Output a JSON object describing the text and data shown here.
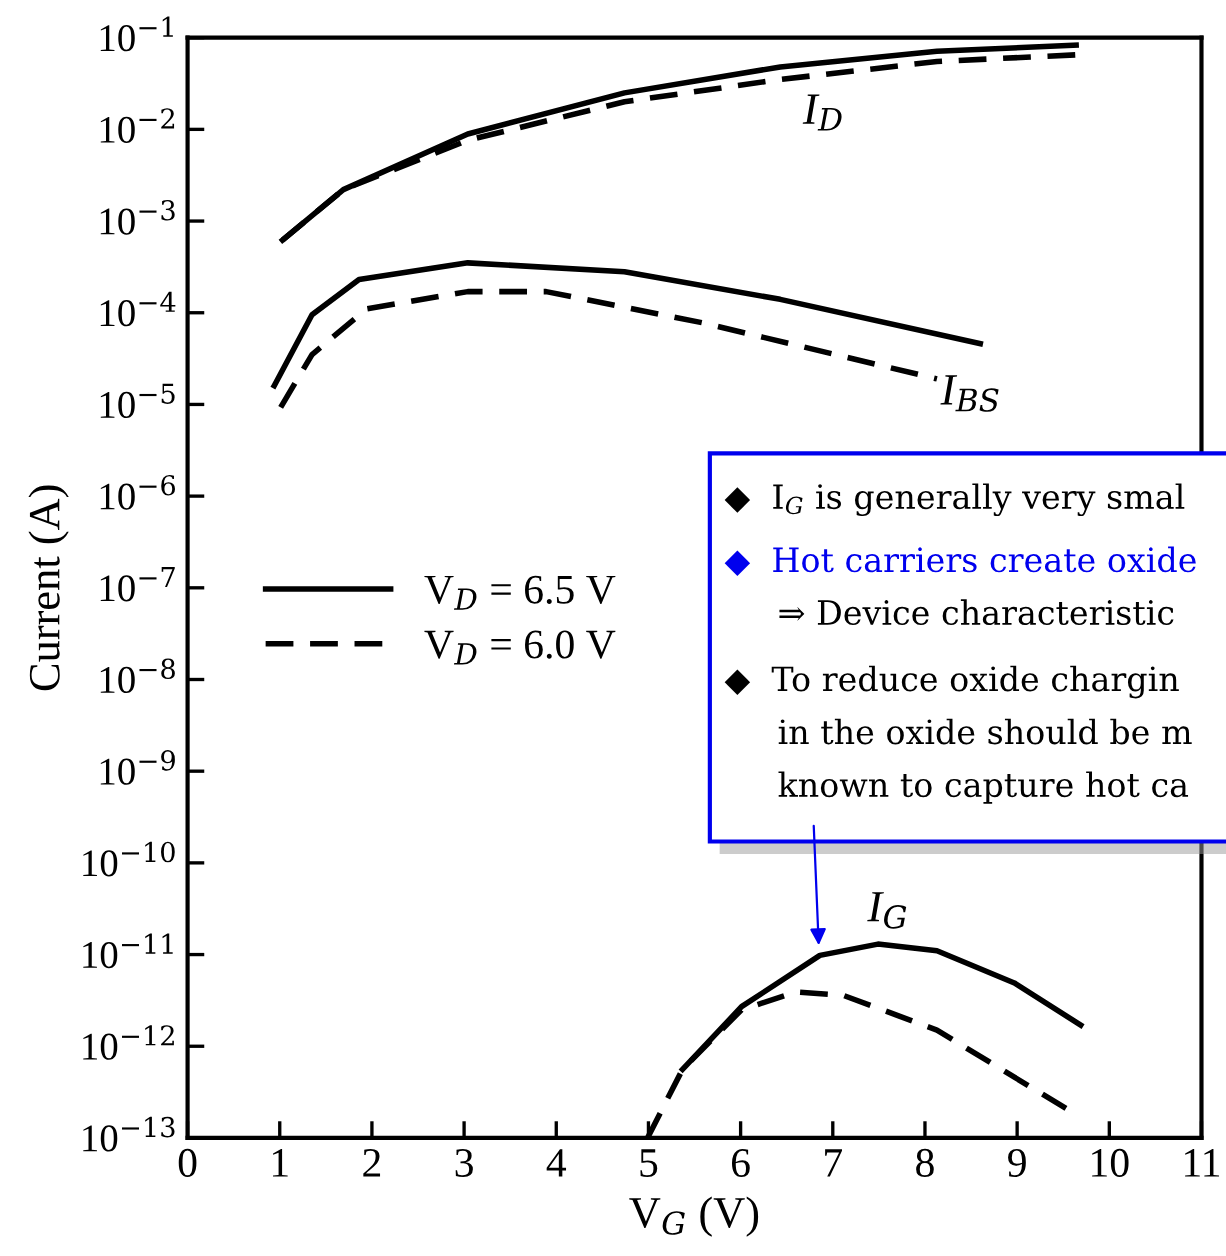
{
  "chart_data": {
    "type": "line",
    "log": "y",
    "xlabel": "V$_{G}$ (V)",
    "ylabel": "Current (A)",
    "xlim": [
      0,
      11
    ],
    "xticks": [
      0,
      1,
      2,
      3,
      4,
      5,
      6,
      7,
      8,
      9,
      10,
      11
    ],
    "ylim": [
      1e-13,
      0.1
    ],
    "yticks": [
      {
        "value": 0.1,
        "label": "10$^{−1}$"
      },
      {
        "value": 0.01,
        "label": "10$^{−2}$"
      },
      {
        "value": 0.001,
        "label": "10$^{−3}$"
      },
      {
        "value": 0.0001,
        "label": "10$^{−4}$"
      },
      {
        "value": 1e-05,
        "label": "10$^{−5}$"
      },
      {
        "value": 1e-06,
        "label": "10$^{−6}$"
      },
      {
        "value": 1e-07,
        "label": "10$^{−7}$"
      },
      {
        "value": 1e-08,
        "label": "10$^{−8}$"
      },
      {
        "value": 1e-09,
        "label": "10$^{−9}$"
      },
      {
        "value": 1e-10,
        "label": "10$^{−10}$"
      },
      {
        "value": 1e-11,
        "label": "10$^{−11}$"
      },
      {
        "value": 1e-12,
        "label": "10$^{−12}$"
      },
      {
        "value": 1e-13,
        "label": "10$^{−13}$"
      }
    ],
    "grid": false,
    "legend": "left",
    "marker": "none",
    "series": [
      {
        "name": "V$_{D}$ = 6.5 V",
        "color": "#000000",
        "line_style": "solid",
        "x": [
          1.03,
          1.69,
          3.04,
          4.74,
          6.43,
          8.13,
          9.64
        ],
        "values": [
          0.00062,
          0.0022,
          0.0089,
          0.025,
          0.048,
          0.071,
          0.083
        ]
      },
      {
        "name": "V$_{D}$ = 6.0 V",
        "color": "#000000",
        "line_style": "dashed",
        "x": [
          1.03,
          1.69,
          3.04,
          4.74,
          6.43,
          8.13,
          9.64
        ],
        "values": [
          0.00062,
          0.0022,
          0.0076,
          0.02,
          0.035,
          0.055,
          0.065
        ]
      },
      {
        "color": "#000000",
        "line_style": "solid",
        "x": [
          0.94,
          1.35,
          1.86,
          3.04,
          4.74,
          6.43,
          8.6
        ],
        "values": [
          1.6e-05,
          9.5e-05,
          0.00023,
          0.00035,
          0.00028,
          0.00014,
          4.6e-05
        ]
      },
      {
        "color": "#000000",
        "line_style": "dashed",
        "x": [
          1.01,
          1.35,
          1.94,
          3.04,
          3.89,
          5.58,
          8.13
        ],
        "values": [
          9.3e-06,
          3.5e-05,
          0.00011,
          0.00017,
          0.00017,
          7.8e-05,
          1.9e-05
        ]
      },
      {
        "color": "#000000",
        "line_style": "solid",
        "x": [
          5.37,
          6.01,
          6.86,
          7.49,
          8.13,
          8.97,
          9.69
        ],
        "values": [
          5.6e-13,
          2.7e-12,
          9.8e-12,
          1.3e-11,
          1.1e-11,
          4.9e-12,
          1.7e-12
        ]
      },
      {
        "color": "#000000",
        "line_style": "dashed",
        "x": [
          4.99,
          5.37,
          6.01,
          6.6,
          7.11,
          8.13,
          8.97,
          9.53
        ],
        "values": [
          1e-13,
          5.6e-13,
          2.5e-12,
          3.9e-12,
          3.6e-12,
          1.5e-12,
          4.6e-13,
          2.1e-13
        ]
      }
    ],
    "annotations": [
      "I$_{D}$",
      "I$_{BS}$",
      "I$_{G}$",
      "◆  I$_{G}$ is generally very smal",
      "◆  Hot carriers create oxide",
      "     ⇒ Device characteristic",
      "◆  To reduce oxide chargin",
      "     in the oxide should be m",
      {
        "text": "     known to capture hot ca",
        "x": 6.85,
        "y": 1.1e-11
      }
    ]
  }
}
